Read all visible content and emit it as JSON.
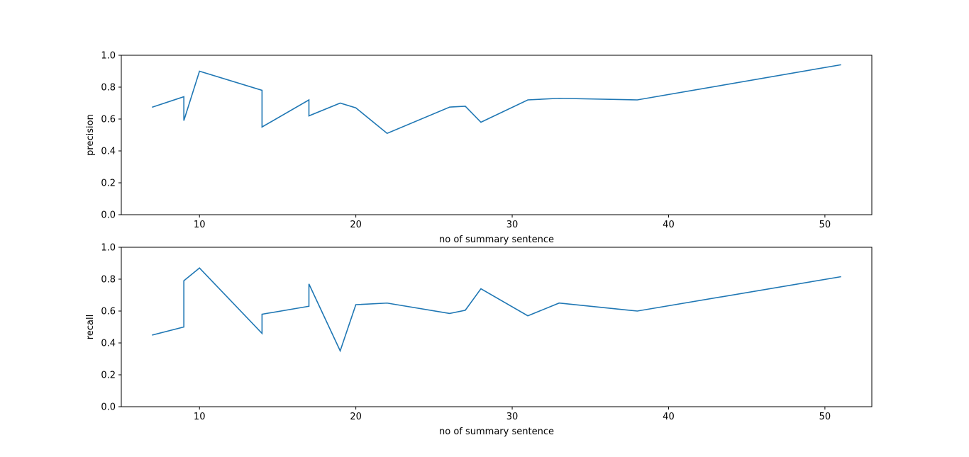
{
  "chart_data": [
    {
      "type": "line",
      "title": "",
      "xlabel": "no of summary sentence",
      "ylabel": "precision",
      "xlim": [
        5,
        53
      ],
      "ylim": [
        0.0,
        1.0
      ],
      "xticks": [
        10,
        20,
        30,
        40,
        50
      ],
      "yticks": [
        0.0,
        0.2,
        0.4,
        0.6,
        0.8,
        1.0
      ],
      "grid": false,
      "line_color": "#1f77b4",
      "series": [
        {
          "x": [
            7,
            9,
            9,
            10,
            14,
            14,
            17,
            17,
            19,
            20,
            22,
            26,
            27,
            28,
            31,
            33,
            38,
            51
          ],
          "values": [
            0.675,
            0.74,
            0.59,
            0.9,
            0.78,
            0.55,
            0.72,
            0.62,
            0.7,
            0.67,
            0.51,
            0.675,
            0.68,
            0.58,
            0.72,
            0.73,
            0.72,
            0.94
          ]
        }
      ]
    },
    {
      "type": "line",
      "title": "",
      "xlabel": "no of summary sentence",
      "ylabel": "recall",
      "xlim": [
        5,
        53
      ],
      "ylim": [
        0.0,
        1.0
      ],
      "xticks": [
        10,
        20,
        30,
        40,
        50
      ],
      "yticks": [
        0.0,
        0.2,
        0.4,
        0.6,
        0.8,
        1.0
      ],
      "grid": false,
      "line_color": "#1f77b4",
      "series": [
        {
          "x": [
            7,
            9,
            9,
            10,
            14,
            14,
            17,
            17,
            19,
            20,
            22,
            26,
            27,
            28,
            31,
            33,
            38,
            51
          ],
          "values": [
            0.45,
            0.5,
            0.79,
            0.87,
            0.46,
            0.58,
            0.63,
            0.77,
            0.35,
            0.64,
            0.65,
            0.585,
            0.605,
            0.74,
            0.57,
            0.65,
            0.6,
            0.815
          ]
        }
      ]
    }
  ]
}
